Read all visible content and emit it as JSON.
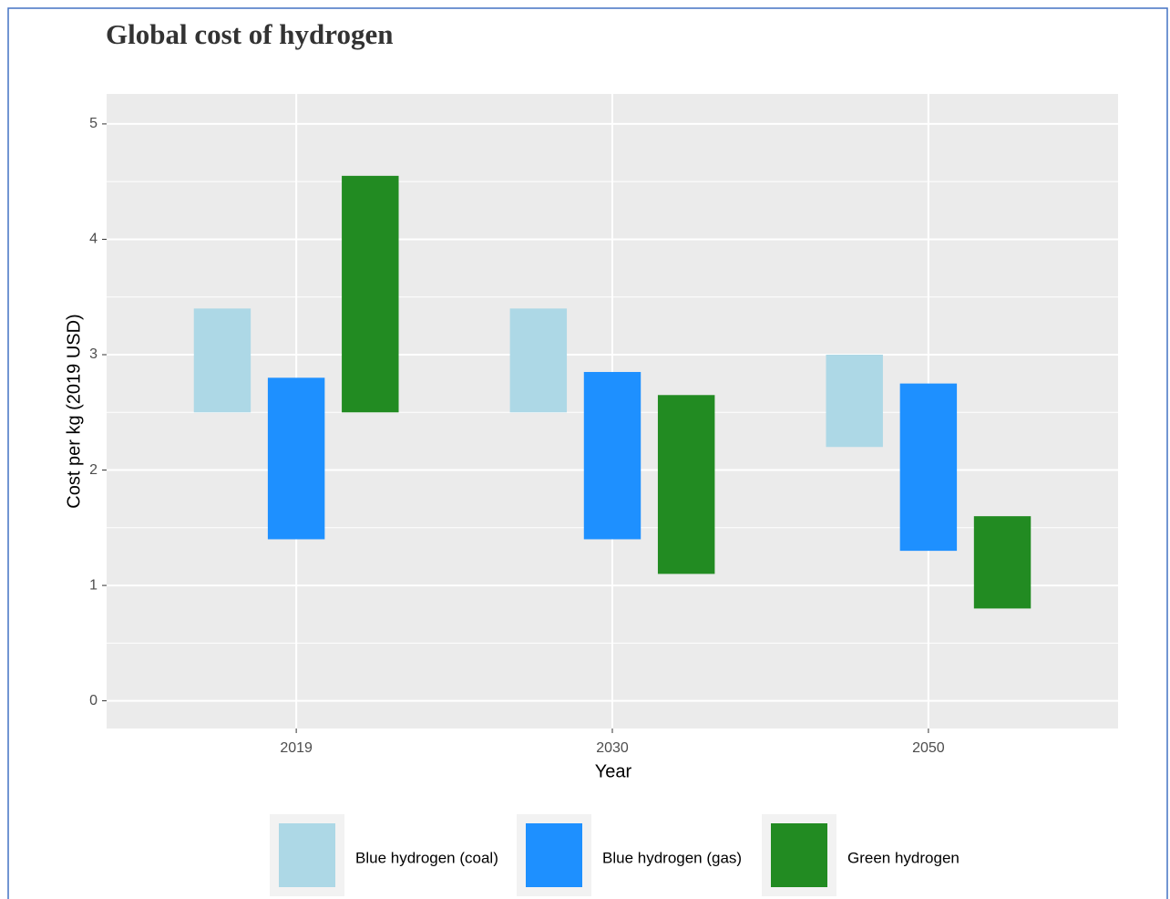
{
  "chart_data": {
    "type": "rangebar",
    "title": "Global cost of hydrogen",
    "x_label": "Year",
    "y_label": "Cost per kg (2019 USD)",
    "categories": [
      "2019",
      "2030",
      "2050"
    ],
    "series": [
      {
        "name": "Blue hydrogen (coal)",
        "color": "#add8e6",
        "low": [
          2.5,
          2.5,
          2.2
        ],
        "high": [
          3.4,
          3.4,
          3.0
        ]
      },
      {
        "name": "Blue hydrogen (gas)",
        "color": "#1e90ff",
        "low": [
          1.4,
          1.4,
          1.3
        ],
        "high": [
          2.8,
          2.85,
          2.75
        ]
      },
      {
        "name": "Green hydrogen",
        "color": "#228b22",
        "low": [
          2.5,
          1.1,
          0.8
        ],
        "high": [
          4.55,
          2.65,
          1.6
        ]
      }
    ],
    "ylim": [
      -0.24,
      5.26
    ],
    "yticks": [
      0,
      1,
      2,
      3,
      4,
      5
    ],
    "grid": true,
    "legend": "bottom"
  }
}
